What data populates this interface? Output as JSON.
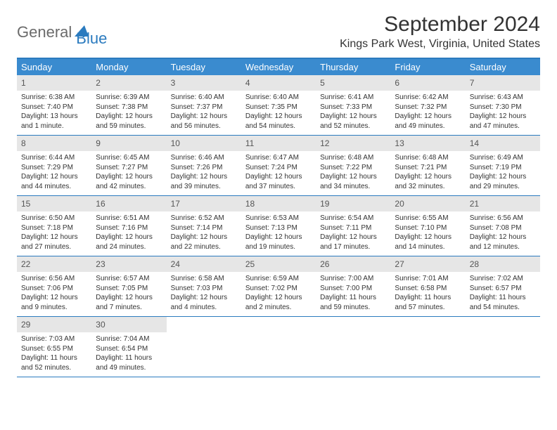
{
  "logo": {
    "general": "General",
    "blue": "Blue"
  },
  "title": "September 2024",
  "location": "Kings Park West, Virginia, United States",
  "colors": {
    "header_bg": "#3a8bcf",
    "header_text": "#ffffff",
    "border": "#2b7bbf",
    "daynum_bg": "#e6e6e6",
    "body_text": "#333333",
    "logo_gray": "#6b6b6b",
    "logo_blue": "#2b7bbf"
  },
  "weekdays": [
    "Sunday",
    "Monday",
    "Tuesday",
    "Wednesday",
    "Thursday",
    "Friday",
    "Saturday"
  ],
  "weeks": [
    [
      {
        "n": "1",
        "sr": "Sunrise: 6:38 AM",
        "ss": "Sunset: 7:40 PM",
        "dl": "Daylight: 13 hours and 1 minute."
      },
      {
        "n": "2",
        "sr": "Sunrise: 6:39 AM",
        "ss": "Sunset: 7:38 PM",
        "dl": "Daylight: 12 hours and 59 minutes."
      },
      {
        "n": "3",
        "sr": "Sunrise: 6:40 AM",
        "ss": "Sunset: 7:37 PM",
        "dl": "Daylight: 12 hours and 56 minutes."
      },
      {
        "n": "4",
        "sr": "Sunrise: 6:40 AM",
        "ss": "Sunset: 7:35 PM",
        "dl": "Daylight: 12 hours and 54 minutes."
      },
      {
        "n": "5",
        "sr": "Sunrise: 6:41 AM",
        "ss": "Sunset: 7:33 PM",
        "dl": "Daylight: 12 hours and 52 minutes."
      },
      {
        "n": "6",
        "sr": "Sunrise: 6:42 AM",
        "ss": "Sunset: 7:32 PM",
        "dl": "Daylight: 12 hours and 49 minutes."
      },
      {
        "n": "7",
        "sr": "Sunrise: 6:43 AM",
        "ss": "Sunset: 7:30 PM",
        "dl": "Daylight: 12 hours and 47 minutes."
      }
    ],
    [
      {
        "n": "8",
        "sr": "Sunrise: 6:44 AM",
        "ss": "Sunset: 7:29 PM",
        "dl": "Daylight: 12 hours and 44 minutes."
      },
      {
        "n": "9",
        "sr": "Sunrise: 6:45 AM",
        "ss": "Sunset: 7:27 PM",
        "dl": "Daylight: 12 hours and 42 minutes."
      },
      {
        "n": "10",
        "sr": "Sunrise: 6:46 AM",
        "ss": "Sunset: 7:26 PM",
        "dl": "Daylight: 12 hours and 39 minutes."
      },
      {
        "n": "11",
        "sr": "Sunrise: 6:47 AM",
        "ss": "Sunset: 7:24 PM",
        "dl": "Daylight: 12 hours and 37 minutes."
      },
      {
        "n": "12",
        "sr": "Sunrise: 6:48 AM",
        "ss": "Sunset: 7:22 PM",
        "dl": "Daylight: 12 hours and 34 minutes."
      },
      {
        "n": "13",
        "sr": "Sunrise: 6:48 AM",
        "ss": "Sunset: 7:21 PM",
        "dl": "Daylight: 12 hours and 32 minutes."
      },
      {
        "n": "14",
        "sr": "Sunrise: 6:49 AM",
        "ss": "Sunset: 7:19 PM",
        "dl": "Daylight: 12 hours and 29 minutes."
      }
    ],
    [
      {
        "n": "15",
        "sr": "Sunrise: 6:50 AM",
        "ss": "Sunset: 7:18 PM",
        "dl": "Daylight: 12 hours and 27 minutes."
      },
      {
        "n": "16",
        "sr": "Sunrise: 6:51 AM",
        "ss": "Sunset: 7:16 PM",
        "dl": "Daylight: 12 hours and 24 minutes."
      },
      {
        "n": "17",
        "sr": "Sunrise: 6:52 AM",
        "ss": "Sunset: 7:14 PM",
        "dl": "Daylight: 12 hours and 22 minutes."
      },
      {
        "n": "18",
        "sr": "Sunrise: 6:53 AM",
        "ss": "Sunset: 7:13 PM",
        "dl": "Daylight: 12 hours and 19 minutes."
      },
      {
        "n": "19",
        "sr": "Sunrise: 6:54 AM",
        "ss": "Sunset: 7:11 PM",
        "dl": "Daylight: 12 hours and 17 minutes."
      },
      {
        "n": "20",
        "sr": "Sunrise: 6:55 AM",
        "ss": "Sunset: 7:10 PM",
        "dl": "Daylight: 12 hours and 14 minutes."
      },
      {
        "n": "21",
        "sr": "Sunrise: 6:56 AM",
        "ss": "Sunset: 7:08 PM",
        "dl": "Daylight: 12 hours and 12 minutes."
      }
    ],
    [
      {
        "n": "22",
        "sr": "Sunrise: 6:56 AM",
        "ss": "Sunset: 7:06 PM",
        "dl": "Daylight: 12 hours and 9 minutes."
      },
      {
        "n": "23",
        "sr": "Sunrise: 6:57 AM",
        "ss": "Sunset: 7:05 PM",
        "dl": "Daylight: 12 hours and 7 minutes."
      },
      {
        "n": "24",
        "sr": "Sunrise: 6:58 AM",
        "ss": "Sunset: 7:03 PM",
        "dl": "Daylight: 12 hours and 4 minutes."
      },
      {
        "n": "25",
        "sr": "Sunrise: 6:59 AM",
        "ss": "Sunset: 7:02 PM",
        "dl": "Daylight: 12 hours and 2 minutes."
      },
      {
        "n": "26",
        "sr": "Sunrise: 7:00 AM",
        "ss": "Sunset: 7:00 PM",
        "dl": "Daylight: 11 hours and 59 minutes."
      },
      {
        "n": "27",
        "sr": "Sunrise: 7:01 AM",
        "ss": "Sunset: 6:58 PM",
        "dl": "Daylight: 11 hours and 57 minutes."
      },
      {
        "n": "28",
        "sr": "Sunrise: 7:02 AM",
        "ss": "Sunset: 6:57 PM",
        "dl": "Daylight: 11 hours and 54 minutes."
      }
    ],
    [
      {
        "n": "29",
        "sr": "Sunrise: 7:03 AM",
        "ss": "Sunset: 6:55 PM",
        "dl": "Daylight: 11 hours and 52 minutes."
      },
      {
        "n": "30",
        "sr": "Sunrise: 7:04 AM",
        "ss": "Sunset: 6:54 PM",
        "dl": "Daylight: 11 hours and 49 minutes."
      },
      null,
      null,
      null,
      null,
      null
    ]
  ]
}
